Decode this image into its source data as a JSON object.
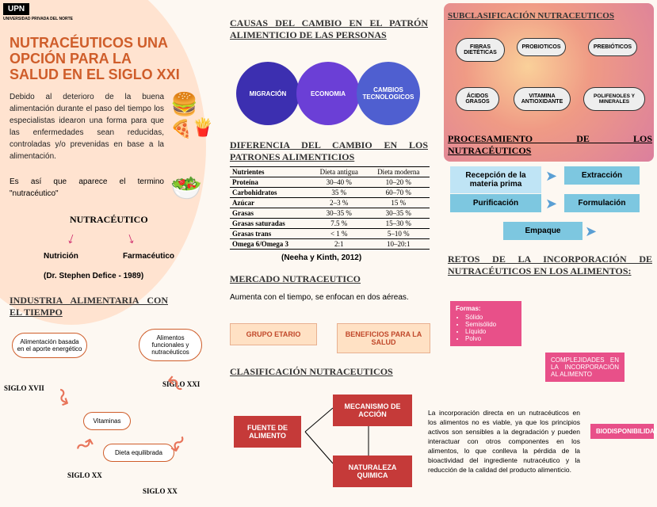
{
  "logo": "UPN",
  "logo_sub": "UNIVERSIDAD PRIVADA DEL NORTE",
  "title": "NUTRACÉUTICOS UNA OPCIÓN PARA LA SALUD EN EL SIGLO XXI",
  "intro": "Debido al deterioro de la buena alimentación durante el paso del tiempo los especialistas idearon una forma para que las enfermedades sean reducidas, controladas y/o prevenidas en base a la alimentación.",
  "intro2": "Es así que aparece el termino \"nutracéutico\"",
  "nutra": "NUTRACÉUTICO",
  "split_l": "Nutrición",
  "split_r": "Farmacéutico",
  "author": "(Dr. Stephen Defice - 1989)",
  "h_col1a": "INDUSTRIA ALIMENTARIA CON EL TIEMPO",
  "cloud1": "Alimentación basada en el aporte energético",
  "cloud2": "Alimentos funcionales y nutracéuticos",
  "cloud3": "Vitaminas",
  "cloud4": "Dieta equilibrada",
  "siglo1": "SIGLO XVII",
  "siglo2": "SIGLO XXI",
  "siglo3": "SIGLO XX",
  "siglo4": "SIGLO XX",
  "h2a": "CAUSAS DEL CAMBIO EN EL PATRÓN ALIMENTICIO DE LAS PERSONAS",
  "c1": "MIGRACIÓN",
  "c2": "ECONOMIA",
  "c3": "CAMBIOS TECNOLOGICOS",
  "h2b": "DIFERENCIA DEL CAMBIO EN LOS PATRONES ALIMENTICIOS",
  "table": {
    "headers": [
      "Nutrientes",
      "Dieta antigua",
      "Dieta moderna"
    ],
    "rows": [
      [
        "Proteína",
        "30–40 %",
        "10–20 %"
      ],
      [
        "Carbohidratos",
        "35 %",
        "60–70 %"
      ],
      [
        "Azúcar",
        "2–3 %",
        "15 %"
      ],
      [
        "Grasas",
        "30–35 %",
        "30–35 %"
      ],
      [
        "Grasas saturadas",
        "7.5 %",
        "15–30 %"
      ],
      [
        "Grasas trans",
        "< 1 %",
        "5–10 %"
      ],
      [
        "Omega 6/Omega 3",
        "2:1",
        "10–20:1"
      ]
    ]
  },
  "cite": "(Neeha y Kinth, 2012)",
  "h2c": "MERCADO NUTRACEUTICO",
  "mkt": "Aumenta con el tiempo, se enfocan en dos aéreas.",
  "pill1": "GRUPO ETARIO",
  "pill2": "BENEFICIOS PARA LA SALUD",
  "h2d": "CLASIFICACIÓN NUTRACEUTICOS",
  "rb1": "FUENTE DE ALIMENTO",
  "rb2": "MECANISMO DE ACCIÓN",
  "rb3": "NATURALEZA QUIMICA",
  "h3a": "SUBCLASIFICACIÓN NUTRACEUTICOS",
  "b1": "FIBRAS DIETÉTICAS",
  "b2": "PROBIOTICOS",
  "b3": "PREBIÓTICOS",
  "b4": "ÁCIDOS GRASOS",
  "b5": "VITAMINA ANTIOXIDANTE",
  "b6": "POLIFENOLES Y MINERALES",
  "h3b": "PROCESAMIENTO DE LOS NUTRACÉUTICOS",
  "st1": "Recepción de la materia prima",
  "st2": "Extracción",
  "st3": "Purificación",
  "st4": "Formulación",
  "st5": "Empaque",
  "h3c": "RETOS DE LA INCORPORACIÓN DE NUTRACÉUTICOS EN LOS ALIMENTOS:",
  "pc1_title": "Formas:",
  "pc1_items": [
    "Sólido",
    "Semisólido",
    "Líquido",
    "Polvo"
  ],
  "pc2": "COMPLEJIDADES EN LA INCORPORACIÓN AL ALIMENTO",
  "pc3": "BIODISPONIBILIDAD",
  "retos": "La incorporación directa en un nutracéuticos en los alimentos no es viable, ya que los principios activos son sensibles a la degradación y pueden interactuar con otros componentes en los alimentos, lo que conlleva la pérdida de la bioactividad del ingrediente nutracéutico y la reducción de la calidad del producto alimenticio."
}
